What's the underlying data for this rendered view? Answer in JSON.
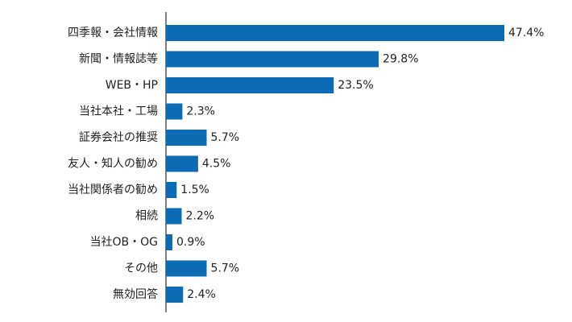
{
  "chart_data": {
    "type": "bar",
    "orientation": "horizontal",
    "categories": [
      "四季報・会社情報",
      "新聞・情報誌等",
      "WEB・HP",
      "当社本社・工場",
      "証券会社の推奨",
      "友人・知人の勧め",
      "当社関係者の勧め",
      "相続",
      "当社OB・OG",
      "その他",
      "無効回答"
    ],
    "values": [
      47.4,
      29.8,
      23.5,
      2.3,
      5.7,
      4.5,
      1.5,
      2.2,
      0.9,
      5.7,
      2.4
    ],
    "value_labels": [
      "47.4%",
      "29.8%",
      "23.5%",
      "2.3%",
      "5.7%",
      "4.5%",
      "1.5%",
      "2.2%",
      "0.9%",
      "5.7%",
      "2.4%"
    ],
    "color": "#0b6bb5"
  }
}
